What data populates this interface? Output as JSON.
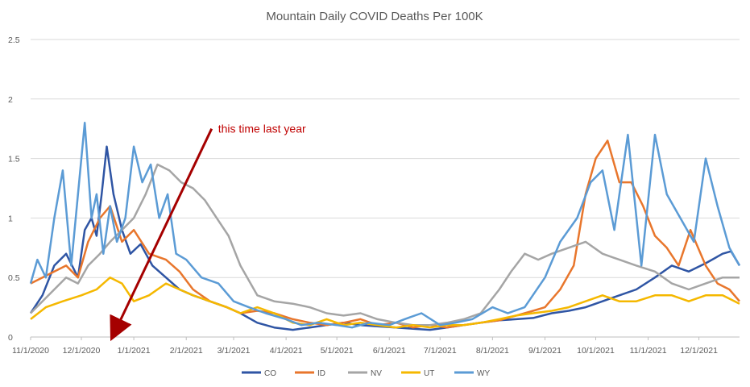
{
  "chart_data": {
    "type": "line",
    "title": "Mountain Daily COVID Deaths Per 100K",
    "xlabel": "",
    "ylabel": "",
    "x_tick_labels": [
      "11/1/2020",
      "12/1/2020",
      "1/1/2021",
      "2/1/2021",
      "3/1/2021",
      "4/1/2021",
      "5/1/2021",
      "6/1/2021",
      "7/1/2021",
      "8/1/2021",
      "9/1/2021",
      "10/1/2021",
      "11/1/2021",
      "12/1/2021"
    ],
    "y_tick_labels": [
      "0",
      "0.5",
      "1",
      "1.5",
      "2",
      "2.5"
    ],
    "ylim": [
      0,
      2.5
    ],
    "xlim": [
      "11/1/2020",
      "12/25/2021"
    ],
    "grid": "horizontal",
    "legend_position": "bottom",
    "annotation": {
      "text": "this time last year",
      "arrow_from": {
        "x": "2/16/2021",
        "y": 1.75
      },
      "arrow_to": {
        "x": "12/20/2020",
        "y": 0.02
      },
      "color": "#a50000"
    },
    "series": [
      {
        "name": "CO",
        "color": "#2f55a4",
        "x": [
          "11/1/2020",
          "11/8/2020",
          "11/15/2020",
          "11/22/2020",
          "11/29/2020",
          "12/3/2020",
          "12/7/2020",
          "12/10/2020",
          "12/13/2020",
          "12/16/2020",
          "12/20/2020",
          "12/25/2020",
          "12/30/2020",
          "1/5/2021",
          "1/12/2021",
          "1/20/2021",
          "1/28/2021",
          "2/5/2021",
          "2/15/2021",
          "2/25/2021",
          "3/5/2021",
          "3/15/2021",
          "3/25/2021",
          "4/5/2021",
          "4/15/2021",
          "4/25/2021",
          "5/5/2021",
          "5/15/2021",
          "5/25/2021",
          "6/5/2021",
          "6/15/2021",
          "6/25/2021",
          "7/5/2021",
          "7/15/2021",
          "7/25/2021",
          "8/5/2021",
          "8/15/2021",
          "8/25/2021",
          "9/5/2021",
          "9/15/2021",
          "9/25/2021",
          "10/5/2021",
          "10/15/2021",
          "10/25/2021",
          "11/5/2021",
          "11/15/2021",
          "11/25/2021",
          "12/5/2021",
          "12/15/2021",
          "12/20/2021",
          "12/25/2021"
        ],
        "y": [
          0.2,
          0.35,
          0.6,
          0.7,
          0.5,
          0.9,
          1.0,
          0.85,
          1.2,
          1.6,
          1.2,
          0.9,
          0.7,
          0.78,
          0.6,
          0.5,
          0.4,
          0.35,
          0.3,
          0.25,
          0.2,
          0.12,
          0.08,
          0.06,
          0.08,
          0.1,
          0.12,
          0.1,
          0.09,
          0.08,
          0.07,
          0.06,
          0.08,
          0.1,
          0.12,
          0.14,
          0.15,
          0.16,
          0.2,
          0.22,
          0.25,
          0.3,
          0.35,
          0.4,
          0.5,
          0.6,
          0.55,
          0.62,
          0.7,
          0.72,
          0.6
        ]
      },
      {
        "name": "ID",
        "color": "#e8762c",
        "x": [
          "11/1/2020",
          "11/8/2020",
          "11/15/2020",
          "11/22/2020",
          "11/29/2020",
          "12/5/2020",
          "12/12/2020",
          "12/18/2020",
          "12/25/2020",
          "1/1/2021",
          "1/10/2021",
          "1/20/2021",
          "1/28/2021",
          "2/5/2021",
          "2/15/2021",
          "2/25/2021",
          "3/5/2021",
          "3/15/2021",
          "3/25/2021",
          "4/5/2021",
          "4/15/2021",
          "4/25/2021",
          "5/5/2021",
          "5/15/2021",
          "5/25/2021",
          "6/5/2021",
          "6/15/2021",
          "6/25/2021",
          "7/5/2021",
          "7/15/2021",
          "7/25/2021",
          "8/5/2021",
          "8/15/2021",
          "8/25/2021",
          "9/1/2021",
          "9/10/2021",
          "9/18/2021",
          "9/25/2021",
          "10/1/2021",
          "10/8/2021",
          "10/15/2021",
          "10/22/2021",
          "10/29/2021",
          "11/5/2021",
          "11/12/2021",
          "11/19/2021",
          "11/26/2021",
          "12/5/2021",
          "12/12/2021",
          "12/19/2021",
          "12/25/2021"
        ],
        "y": [
          0.45,
          0.5,
          0.55,
          0.6,
          0.5,
          0.8,
          1.0,
          1.1,
          0.8,
          0.9,
          0.7,
          0.65,
          0.55,
          0.4,
          0.3,
          0.25,
          0.2,
          0.22,
          0.2,
          0.15,
          0.12,
          0.1,
          0.12,
          0.15,
          0.1,
          0.12,
          0.08,
          0.1,
          0.08,
          0.1,
          0.12,
          0.14,
          0.18,
          0.22,
          0.25,
          0.4,
          0.6,
          1.2,
          1.5,
          1.65,
          1.3,
          1.3,
          1.1,
          0.85,
          0.75,
          0.6,
          0.9,
          0.6,
          0.45,
          0.4,
          0.3
        ]
      },
      {
        "name": "NV",
        "color": "#a5a5a5",
        "x": [
          "11/1/2020",
          "11/8/2020",
          "11/15/2020",
          "11/22/2020",
          "11/29/2020",
          "12/5/2020",
          "12/12/2020",
          "12/18/2020",
          "12/25/2020",
          "1/1/2021",
          "1/8/2021",
          "1/15/2021",
          "1/22/2021",
          "1/29/2021",
          "2/5/2021",
          "2/12/2021",
          "2/19/2021",
          "2/26/2021",
          "3/5/2021",
          "3/15/2021",
          "3/25/2021",
          "4/5/2021",
          "4/15/2021",
          "4/25/2021",
          "5/5/2021",
          "5/15/2021",
          "5/25/2021",
          "6/5/2021",
          "6/15/2021",
          "6/25/2021",
          "7/5/2021",
          "7/15/2021",
          "7/25/2021",
          "8/5/2021",
          "8/12/2021",
          "8/20/2021",
          "8/28/2021",
          "9/5/2021",
          "9/15/2021",
          "9/25/2021",
          "10/5/2021",
          "10/15/2021",
          "10/25/2021",
          "11/5/2021",
          "11/15/2021",
          "11/25/2021",
          "12/5/2021",
          "12/15/2021",
          "12/25/2021"
        ],
        "y": [
          0.2,
          0.3,
          0.4,
          0.5,
          0.45,
          0.6,
          0.7,
          0.8,
          0.9,
          1.0,
          1.2,
          1.45,
          1.4,
          1.3,
          1.25,
          1.15,
          1.0,
          0.85,
          0.6,
          0.35,
          0.3,
          0.28,
          0.25,
          0.2,
          0.18,
          0.2,
          0.15,
          0.12,
          0.1,
          0.1,
          0.12,
          0.15,
          0.2,
          0.4,
          0.55,
          0.7,
          0.65,
          0.7,
          0.75,
          0.8,
          0.7,
          0.65,
          0.6,
          0.55,
          0.45,
          0.4,
          0.45,
          0.5,
          0.5
        ]
      },
      {
        "name": "UT",
        "color": "#f5b800",
        "x": [
          "11/1/2020",
          "11/10/2020",
          "11/20/2020",
          "12/1/2020",
          "12/10/2020",
          "12/18/2020",
          "12/25/2020",
          "1/1/2021",
          "1/10/2021",
          "1/20/2021",
          "1/28/2021",
          "2/5/2021",
          "2/15/2021",
          "2/25/2021",
          "3/5/2021",
          "3/15/2021",
          "3/25/2021",
          "4/5/2021",
          "4/15/2021",
          "4/25/2021",
          "5/5/2021",
          "5/15/2021",
          "5/25/2021",
          "6/5/2021",
          "6/15/2021",
          "6/25/2021",
          "7/5/2021",
          "7/15/2021",
          "7/25/2021",
          "8/5/2021",
          "8/15/2021",
          "8/25/2021",
          "9/5/2021",
          "9/15/2021",
          "9/25/2021",
          "10/5/2021",
          "10/15/2021",
          "10/25/2021",
          "11/5/2021",
          "11/15/2021",
          "11/25/2021",
          "12/5/2021",
          "12/15/2021",
          "12/25/2021"
        ],
        "y": [
          0.15,
          0.25,
          0.3,
          0.35,
          0.4,
          0.5,
          0.45,
          0.3,
          0.35,
          0.45,
          0.4,
          0.35,
          0.3,
          0.25,
          0.2,
          0.25,
          0.2,
          0.12,
          0.1,
          0.15,
          0.1,
          0.12,
          0.1,
          0.08,
          0.1,
          0.08,
          0.1,
          0.1,
          0.12,
          0.15,
          0.18,
          0.2,
          0.22,
          0.25,
          0.3,
          0.35,
          0.3,
          0.3,
          0.35,
          0.35,
          0.3,
          0.35,
          0.35,
          0.28
        ]
      },
      {
        "name": "WY",
        "color": "#5b9bd5",
        "x": [
          "11/1/2020",
          "11/5/2020",
          "11/10/2020",
          "11/15/2020",
          "11/20/2020",
          "11/25/2020",
          "11/29/2020",
          "12/3/2020",
          "12/7/2020",
          "12/10/2020",
          "12/14/2020",
          "12/18/2020",
          "12/22/2020",
          "12/27/2020",
          "1/1/2021",
          "1/6/2021",
          "1/11/2021",
          "1/16/2021",
          "1/21/2021",
          "1/26/2021",
          "2/1/2021",
          "2/10/2021",
          "2/20/2021",
          "3/1/2021",
          "3/10/2021",
          "3/20/2021",
          "4/1/2021",
          "4/10/2021",
          "4/20/2021",
          "5/1/2021",
          "5/10/2021",
          "5/20/2021",
          "6/1/2021",
          "6/10/2021",
          "6/20/2021",
          "7/1/2021",
          "7/10/2021",
          "7/20/2021",
          "8/1/2021",
          "8/10/2021",
          "8/20/2021",
          "9/1/2021",
          "9/10/2021",
          "9/20/2021",
          "9/28/2021",
          "10/5/2021",
          "10/12/2021",
          "10/20/2021",
          "10/28/2021",
          "11/5/2021",
          "11/12/2021",
          "11/20/2021",
          "11/28/2021",
          "12/5/2021",
          "12/12/2021",
          "12/19/2021",
          "12/25/2021"
        ],
        "y": [
          0.45,
          0.65,
          0.5,
          1.0,
          1.4,
          0.6,
          1.2,
          1.8,
          1.0,
          1.2,
          0.7,
          1.1,
          0.8,
          1.0,
          1.6,
          1.3,
          1.45,
          1.0,
          1.2,
          0.7,
          0.65,
          0.5,
          0.45,
          0.3,
          0.25,
          0.2,
          0.15,
          0.1,
          0.12,
          0.1,
          0.08,
          0.12,
          0.1,
          0.15,
          0.2,
          0.1,
          0.12,
          0.15,
          0.25,
          0.2,
          0.25,
          0.5,
          0.8,
          1.0,
          1.3,
          1.4,
          0.9,
          1.7,
          0.6,
          1.7,
          1.2,
          1.0,
          0.8,
          1.5,
          1.1,
          0.75,
          0.6
        ]
      }
    ]
  }
}
